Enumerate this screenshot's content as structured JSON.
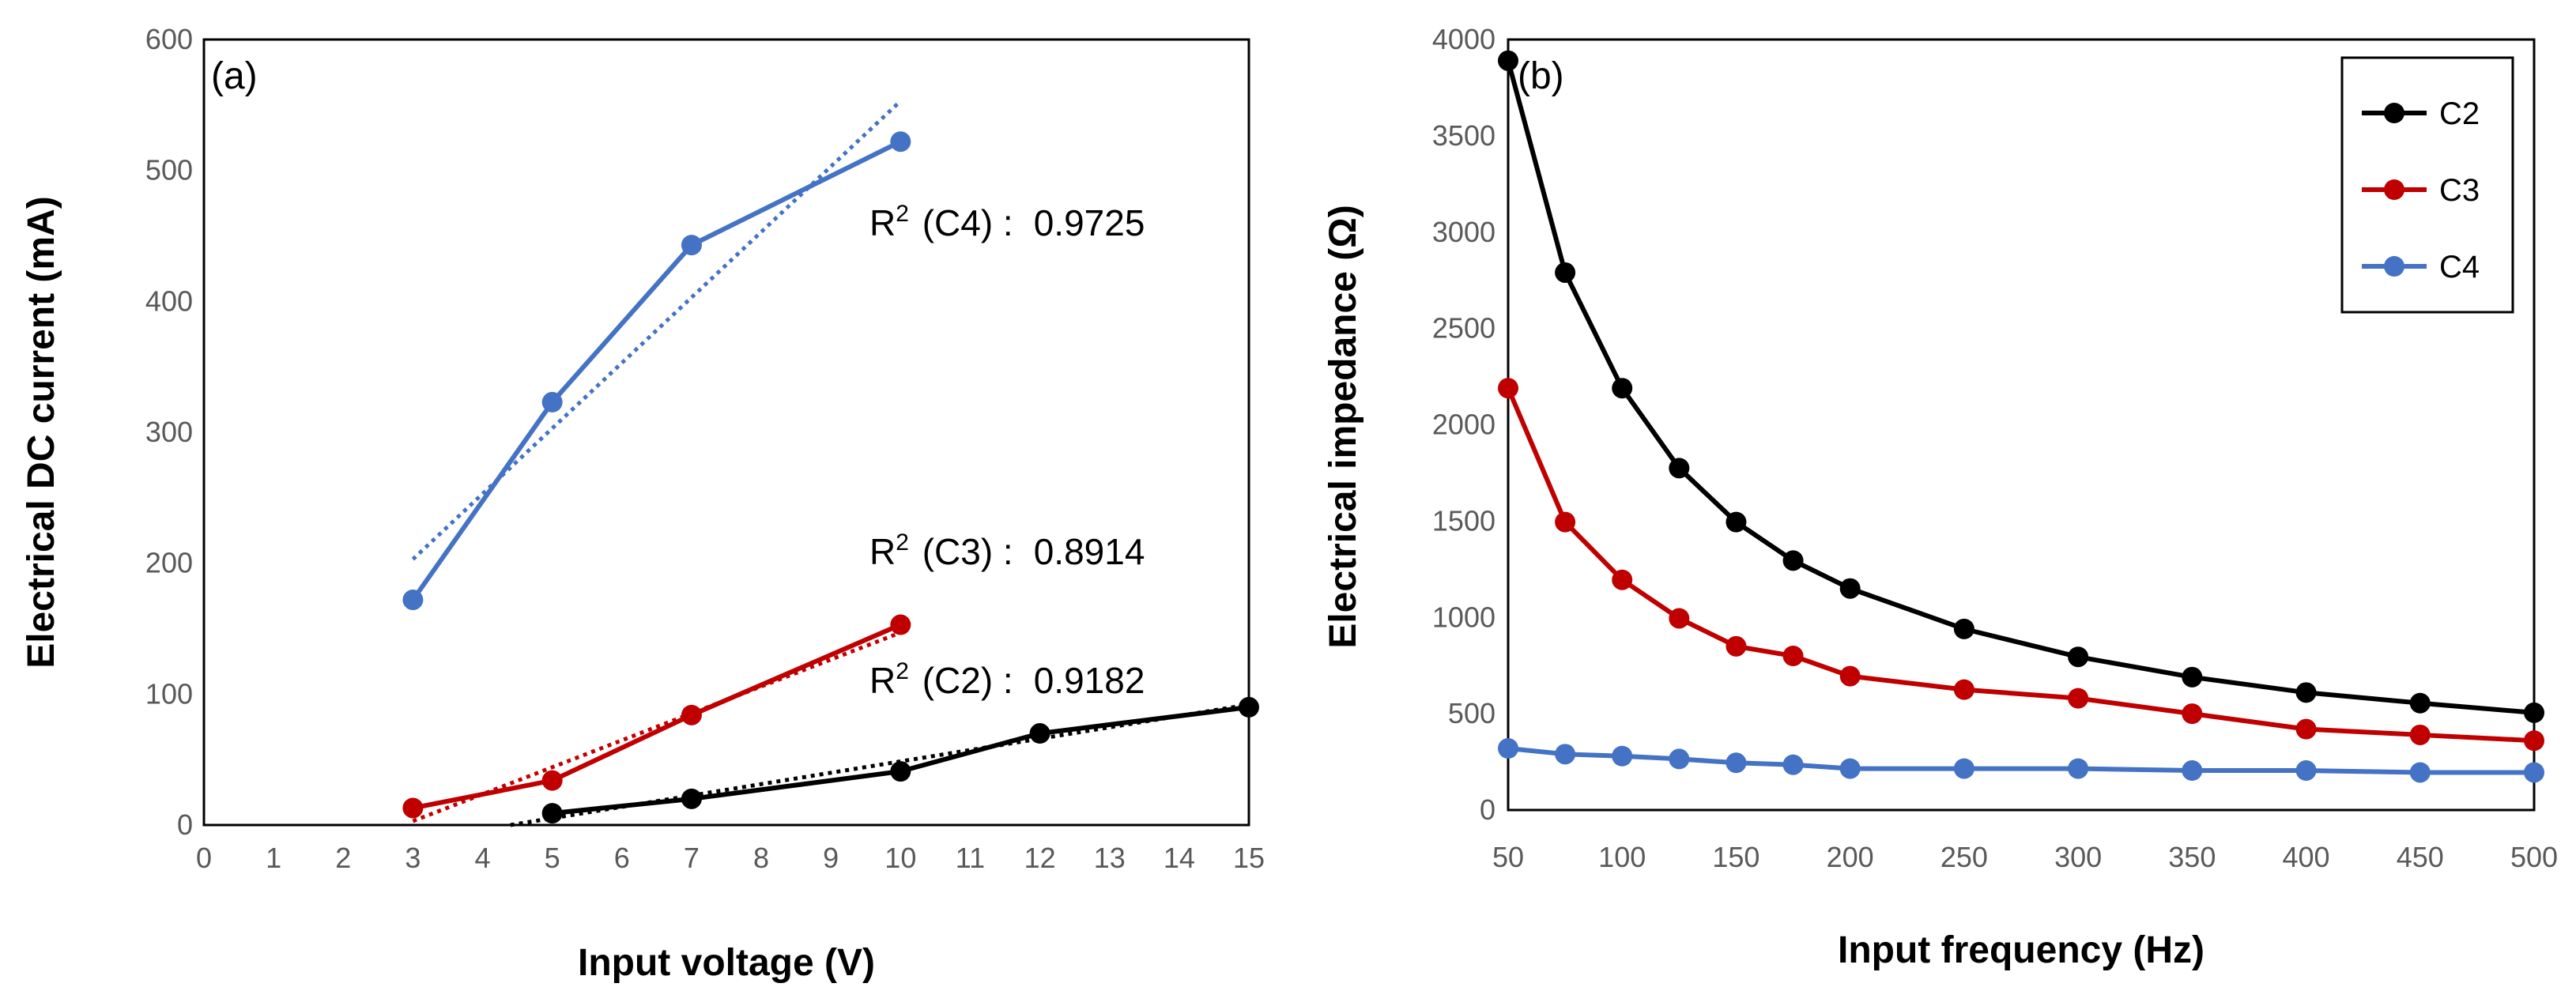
{
  "chart_data": [
    {
      "type": "line",
      "panel_label": "(a)",
      "xlabel": "Input voltage (V)",
      "ylabel": "Electrical DC current (mA)",
      "xlim": [
        0,
        15
      ],
      "ylim": [
        0,
        600
      ],
      "xticks": [
        "0",
        "1",
        "2",
        "3",
        "4",
        "5",
        "6",
        "7",
        "8",
        "9",
        "10",
        "11",
        "12",
        "13",
        "14",
        "15"
      ],
      "yticks": [
        "0",
        "100",
        "200",
        "300",
        "400",
        "500",
        "600"
      ],
      "grid": false,
      "series": [
        {
          "name": "C4",
          "color": "#4472C4",
          "x": [
            3,
            5,
            7,
            10
          ],
          "y": [
            172,
            323,
            443,
            522
          ],
          "trendline": {
            "x": [
              3,
              10
            ],
            "y": [
              203,
              553
            ]
          },
          "r2_label": "R",
          "r2_sup": "2",
          "r2_name": "(C4) :",
          "r2_value": "0.9725"
        },
        {
          "name": "C3",
          "color": "#C00000",
          "x": [
            3,
            5,
            7,
            10
          ],
          "y": [
            13,
            34,
            84,
            153
          ],
          "trendline": {
            "x": [
              3,
              10
            ],
            "y": [
              3,
              147
            ]
          },
          "r2_label": "R",
          "r2_sup": "2",
          "r2_name": "(C3) :",
          "r2_value": "0.8914"
        },
        {
          "name": "C2",
          "color": "#000000",
          "x": [
            5,
            7,
            10,
            12,
            15
          ],
          "y": [
            9,
            20,
            41,
            70,
            90
          ],
          "trendline": {
            "x": [
              4.4,
              15
            ],
            "y": [
              0,
              92
            ]
          },
          "r2_label": "R",
          "r2_sup": "2",
          "r2_name": "(C2) :",
          "r2_value": "0.9182"
        }
      ]
    },
    {
      "type": "line",
      "panel_label": "(b)",
      "xlabel": "Input frequency (Hz)",
      "ylabel": "Electrical impedance (Ω)",
      "x": [
        50,
        75,
        100,
        125,
        150,
        175,
        200,
        250,
        300,
        350,
        400,
        450,
        500
      ],
      "xlim": [
        50,
        500
      ],
      "ylim": [
        0,
        4000
      ],
      "xticks": [
        "50",
        "100",
        "150",
        "200",
        "250",
        "300",
        "350",
        "400",
        "450",
        "500"
      ],
      "yticks": [
        "0",
        "500",
        "1000",
        "1500",
        "2000",
        "2500",
        "3000",
        "3500",
        "4000"
      ],
      "grid": false,
      "legend_position": "top-right",
      "series": [
        {
          "name": "C2",
          "color": "#000000",
          "values": [
            3890,
            2790,
            2190,
            1775,
            1495,
            1295,
            1150,
            940,
            795,
            690,
            610,
            555,
            505
          ]
        },
        {
          "name": "C3",
          "color": "#C00000",
          "values": [
            2190,
            1495,
            1195,
            995,
            850,
            800,
            695,
            625,
            580,
            500,
            420,
            390,
            360
          ]
        },
        {
          "name": "C4",
          "color": "#4472C4",
          "values": [
            320,
            290,
            280,
            265,
            245,
            235,
            215,
            215,
            215,
            205,
            205,
            195,
            195
          ]
        }
      ]
    }
  ]
}
